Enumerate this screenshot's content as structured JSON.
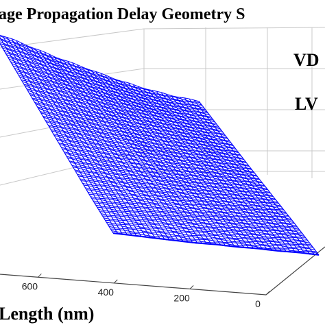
{
  "chart_data": {
    "type": "surface",
    "title": "age Propagation Delay Geometry S",
    "xlabel": "Length (nm)",
    "x_ticks": [
      "600",
      "400",
      "200",
      "0"
    ],
    "x_range": [
      700,
      0
    ],
    "annotations": [
      "VD",
      "LV"
    ],
    "grid": true,
    "colors": {
      "surface": "#0000ff",
      "grid": "#c8c8c8",
      "axis": "#444444"
    },
    "surface_z": [
      [
        1.0,
        0.93,
        0.85,
        0.77,
        0.7,
        0.63,
        0.56,
        0.5,
        0.45,
        0.41,
        0.38
      ],
      [
        0.86,
        0.8,
        0.74,
        0.68,
        0.62,
        0.56,
        0.51,
        0.46,
        0.42,
        0.38,
        0.35
      ],
      [
        0.72,
        0.67,
        0.62,
        0.57,
        0.53,
        0.48,
        0.44,
        0.41,
        0.38,
        0.35,
        0.32
      ],
      [
        0.58,
        0.54,
        0.5,
        0.47,
        0.44,
        0.41,
        0.38,
        0.36,
        0.34,
        0.32,
        0.3
      ],
      [
        0.44,
        0.42,
        0.4,
        0.38,
        0.36,
        0.34,
        0.33,
        0.31,
        0.3,
        0.29,
        0.28
      ],
      [
        0.32,
        0.31,
        0.3,
        0.29,
        0.28,
        0.28,
        0.27,
        0.27,
        0.26,
        0.26,
        0.25
      ]
    ]
  }
}
